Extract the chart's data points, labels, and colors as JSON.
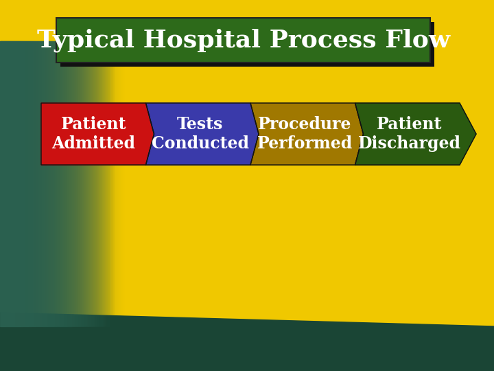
{
  "title": "Typical Hospital Process Flow",
  "title_bg": "#2d6a1a",
  "title_shadow": "#1a1a1a",
  "title_text_color": "#ffffff",
  "title_fontsize": 26,
  "bg_color": "#f0c800",
  "steps": [
    {
      "label": "Patient\nAdmitted",
      "color": "#cc1111"
    },
    {
      "label": "Tests\nConducted",
      "color": "#3a3aaa"
    },
    {
      "label": "Procedure\nPerformed",
      "color": "#a07800"
    },
    {
      "label": "Patient\nDischarged",
      "color": "#2a5a10"
    }
  ],
  "step_text_color": "#ffffff",
  "step_fontsize": 17,
  "left_teal": "#2a6050",
  "bottom_teal": "#1a4535"
}
